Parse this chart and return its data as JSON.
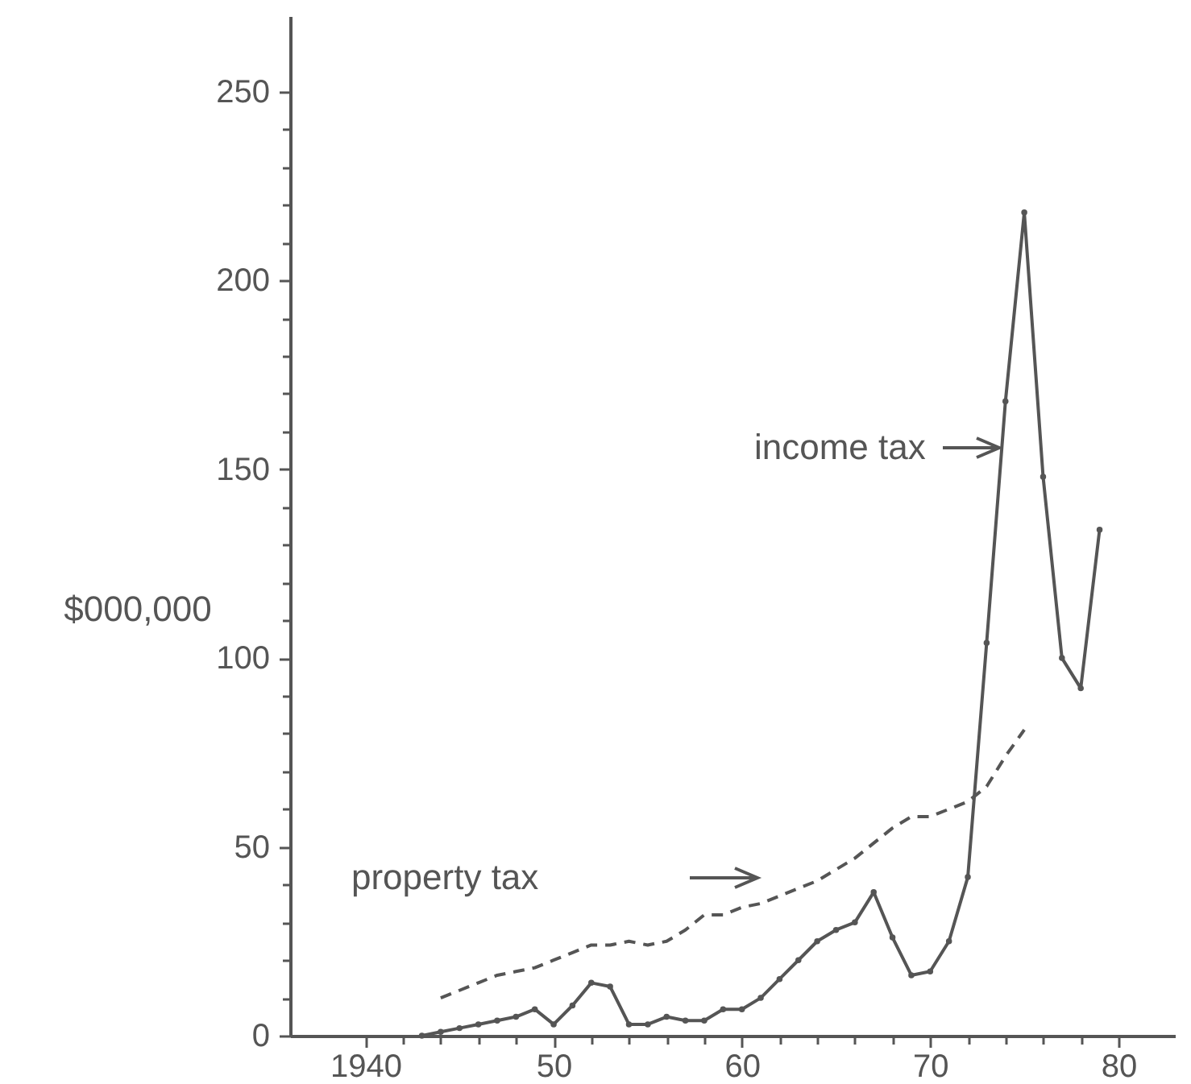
{
  "chart_data": {
    "type": "line",
    "ylabel": "$000,000",
    "xlim": [
      1936,
      1983
    ],
    "ylim": [
      0,
      270
    ],
    "xticks": [
      {
        "value": 1940,
        "label": "1940"
      },
      {
        "value": 1942,
        "label": null
      },
      {
        "value": 1944,
        "label": null
      },
      {
        "value": 1946,
        "label": null
      },
      {
        "value": 1948,
        "label": null
      },
      {
        "value": 1950,
        "label": "50"
      },
      {
        "value": 1952,
        "label": null
      },
      {
        "value": 1954,
        "label": null
      },
      {
        "value": 1956,
        "label": null
      },
      {
        "value": 1958,
        "label": null
      },
      {
        "value": 1960,
        "label": "60"
      },
      {
        "value": 1962,
        "label": null
      },
      {
        "value": 1964,
        "label": null
      },
      {
        "value": 1966,
        "label": null
      },
      {
        "value": 1968,
        "label": null
      },
      {
        "value": 1970,
        "label": "70"
      },
      {
        "value": 1972,
        "label": null
      },
      {
        "value": 1974,
        "label": null
      },
      {
        "value": 1976,
        "label": null
      },
      {
        "value": 1978,
        "label": null
      },
      {
        "value": 1980,
        "label": "80"
      }
    ],
    "yticks": [
      0,
      {
        "value": 10,
        "label": null
      },
      {
        "value": 20,
        "label": null
      },
      {
        "value": 30,
        "label": null
      },
      {
        "value": 40,
        "label": null
      },
      50,
      {
        "value": 60,
        "label": null
      },
      {
        "value": 70,
        "label": null
      },
      {
        "value": 80,
        "label": null
      },
      {
        "value": 90,
        "label": null
      },
      100,
      {
        "value": 110,
        "label": null
      },
      {
        "value": 120,
        "label": null
      },
      {
        "value": 130,
        "label": null
      },
      {
        "value": 140,
        "label": null
      },
      150,
      {
        "value": 160,
        "label": null
      },
      {
        "value": 170,
        "label": null
      },
      {
        "value": 180,
        "label": null
      },
      {
        "value": 190,
        "label": null
      },
      200,
      {
        "value": 210,
        "label": null
      },
      {
        "value": 220,
        "label": null
      },
      {
        "value": 230,
        "label": null
      },
      {
        "value": 240,
        "label": null
      },
      250
    ],
    "series": [
      {
        "name": "income tax",
        "color": "#555555",
        "marker": "circle",
        "line_style": "solid",
        "x": [
          1943,
          1944,
          1945,
          1946,
          1947,
          1948,
          1949,
          1950,
          1951,
          1952,
          1953,
          1954,
          1955,
          1956,
          1957,
          1958,
          1959,
          1960,
          1961,
          1962,
          1963,
          1964,
          1965,
          1966,
          1967,
          1968,
          1969,
          1970,
          1971,
          1972,
          1973,
          1974,
          1975,
          1976,
          1977,
          1978,
          1979
        ],
        "values": [
          0,
          1,
          2,
          3,
          4,
          5,
          7,
          3,
          8,
          14,
          13,
          3,
          3,
          5,
          4,
          4,
          7,
          7,
          10,
          15,
          20,
          25,
          28,
          30,
          38,
          26,
          16,
          17,
          25,
          42,
          104,
          168,
          218,
          148,
          100,
          92,
          134
        ]
      },
      {
        "name": "property tax",
        "color": "#555555",
        "marker": "none",
        "line_style": "dashed",
        "x": [
          1944,
          1945,
          1946,
          1947,
          1948,
          1949,
          1950,
          1951,
          1952,
          1953,
          1954,
          1955,
          1956,
          1957,
          1958,
          1959,
          1960,
          1961,
          1962,
          1963,
          1964,
          1965,
          1966,
          1967,
          1968,
          1969,
          1970,
          1971,
          1972,
          1973,
          1974,
          1975
        ],
        "values": [
          10,
          12,
          14,
          16,
          17,
          18,
          20,
          22,
          24,
          24,
          25,
          24,
          25,
          28,
          32,
          32,
          34,
          35,
          37,
          39,
          41,
          44,
          47,
          51,
          55,
          58,
          58,
          60,
          62,
          66,
          74,
          81
        ]
      }
    ]
  }
}
